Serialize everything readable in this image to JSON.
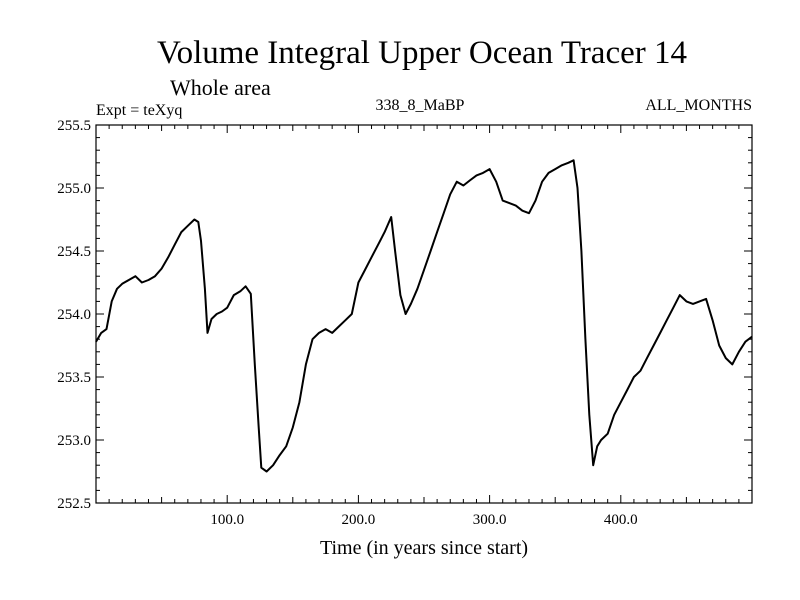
{
  "chart_data": {
    "type": "line",
    "title": "Volume Integral Upper Ocean Tracer 14",
    "subtitle": "Whole area",
    "expt_label": "Expt = teXyq",
    "run_label": "338_8_MaBP",
    "months_label": "ALL_MONTHS",
    "xlabel": "Time (in years since start)",
    "ylabel": "",
    "xlim": [
      0,
      500
    ],
    "ylim": [
      252.5,
      255.5
    ],
    "x_ticks": [
      100,
      200,
      300,
      400
    ],
    "x_tick_labels": [
      "100.0",
      "200.0",
      "300.0",
      "400.0"
    ],
    "y_ticks": [
      252.5,
      253.0,
      253.5,
      254.0,
      254.5,
      255.0,
      255.5
    ],
    "y_tick_labels": [
      "252.5",
      "253.0",
      "253.5",
      "254.0",
      "254.5",
      "255.0",
      "255.5"
    ],
    "grid": false,
    "line_color": "#000000",
    "series": [
      {
        "points": [
          [
            0,
            253.78
          ],
          [
            4,
            253.85
          ],
          [
            8,
            253.88
          ],
          [
            12,
            254.1
          ],
          [
            16,
            254.2
          ],
          [
            20,
            254.24
          ],
          [
            25,
            254.27
          ],
          [
            30,
            254.3
          ],
          [
            35,
            254.25
          ],
          [
            40,
            254.27
          ],
          [
            45,
            254.3
          ],
          [
            50,
            254.36
          ],
          [
            55,
            254.45
          ],
          [
            60,
            254.55
          ],
          [
            65,
            254.65
          ],
          [
            70,
            254.7
          ],
          [
            75,
            254.75
          ],
          [
            78,
            254.73
          ],
          [
            80,
            254.58
          ],
          [
            83,
            254.2
          ],
          [
            85,
            253.85
          ],
          [
            88,
            253.96
          ],
          [
            92,
            254.0
          ],
          [
            96,
            254.02
          ],
          [
            100,
            254.05
          ],
          [
            105,
            254.15
          ],
          [
            110,
            254.18
          ],
          [
            114,
            254.22
          ],
          [
            118,
            254.16
          ],
          [
            121,
            253.6
          ],
          [
            124,
            253.1
          ],
          [
            126,
            252.78
          ],
          [
            130,
            252.75
          ],
          [
            135,
            252.8
          ],
          [
            140,
            252.88
          ],
          [
            145,
            252.95
          ],
          [
            150,
            253.1
          ],
          [
            155,
            253.3
          ],
          [
            160,
            253.6
          ],
          [
            165,
            253.8
          ],
          [
            170,
            253.85
          ],
          [
            175,
            253.88
          ],
          [
            180,
            253.85
          ],
          [
            185,
            253.9
          ],
          [
            190,
            253.95
          ],
          [
            195,
            254.0
          ],
          [
            200,
            254.25
          ],
          [
            205,
            254.35
          ],
          [
            210,
            254.45
          ],
          [
            215,
            254.55
          ],
          [
            220,
            254.65
          ],
          [
            225,
            254.77
          ],
          [
            228,
            254.5
          ],
          [
            232,
            254.15
          ],
          [
            236,
            254.0
          ],
          [
            240,
            254.08
          ],
          [
            245,
            254.2
          ],
          [
            250,
            254.35
          ],
          [
            255,
            254.5
          ],
          [
            260,
            254.65
          ],
          [
            265,
            254.8
          ],
          [
            270,
            254.95
          ],
          [
            275,
            255.05
          ],
          [
            280,
            255.02
          ],
          [
            285,
            255.06
          ],
          [
            290,
            255.1
          ],
          [
            295,
            255.12
          ],
          [
            300,
            255.15
          ],
          [
            305,
            255.05
          ],
          [
            310,
            254.9
          ],
          [
            315,
            254.88
          ],
          [
            320,
            254.86
          ],
          [
            325,
            254.82
          ],
          [
            330,
            254.8
          ],
          [
            335,
            254.9
          ],
          [
            340,
            255.05
          ],
          [
            345,
            255.12
          ],
          [
            350,
            255.15
          ],
          [
            355,
            255.18
          ],
          [
            360,
            255.2
          ],
          [
            364,
            255.22
          ],
          [
            367,
            255.0
          ],
          [
            370,
            254.5
          ],
          [
            373,
            253.8
          ],
          [
            376,
            253.2
          ],
          [
            379,
            252.8
          ],
          [
            382,
            252.95
          ],
          [
            385,
            253.0
          ],
          [
            390,
            253.05
          ],
          [
            395,
            253.2
          ],
          [
            400,
            253.3
          ],
          [
            405,
            253.4
          ],
          [
            410,
            253.5
          ],
          [
            415,
            253.55
          ],
          [
            420,
            253.65
          ],
          [
            425,
            253.75
          ],
          [
            430,
            253.85
          ],
          [
            435,
            253.95
          ],
          [
            440,
            254.05
          ],
          [
            445,
            254.15
          ],
          [
            450,
            254.1
          ],
          [
            455,
            254.08
          ],
          [
            460,
            254.1
          ],
          [
            465,
            254.12
          ],
          [
            470,
            253.95
          ],
          [
            475,
            253.75
          ],
          [
            480,
            253.65
          ],
          [
            485,
            253.6
          ],
          [
            490,
            253.7
          ],
          [
            495,
            253.78
          ],
          [
            500,
            253.82
          ]
        ]
      }
    ]
  }
}
